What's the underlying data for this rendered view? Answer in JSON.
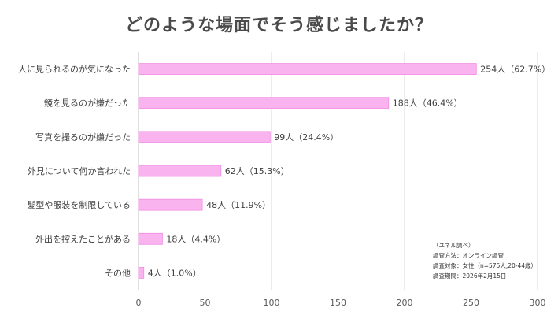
{
  "chart_data": {
    "type": "bar",
    "orientation": "horizontal",
    "title": "どのような場面でそう感じましたか？",
    "categories": [
      "人に見られるのが気になった",
      "鏡を見るのが嫌だった",
      "写真を撮るのが嫌だった",
      "外見について何か言われた",
      "髪型や服装を制限している",
      "外出を控えたことがある",
      "その他"
    ],
    "values": [
      254,
      188,
      99,
      62,
      48,
      18,
      4
    ],
    "percents": [
      "62.7%",
      "46.4%",
      "24.4%",
      "15.3%",
      "11.9%",
      "4.4%",
      "1.0%"
    ],
    "data_labels": [
      "254人（62.7%）",
      "188人（46.4%）",
      "99人（24.4%）",
      "62人（15.3%）",
      "48人（11.9%）",
      "18人（4.4%）",
      "4人（1.0%）"
    ],
    "xlim": [
      0,
      300
    ],
    "xticks": [
      0,
      50,
      100,
      150,
      200,
      250,
      300
    ],
    "xtick_labels": [
      "0",
      "50",
      "100",
      "150",
      "200",
      "250",
      "300"
    ],
    "grid": true,
    "bar_color": "#f9b3ee",
    "bar_edge_color": "#f28de3",
    "grid_color": "#d9d9d9"
  },
  "notes": {
    "line1": "（ユネル調べ）",
    "line2": "調査方法：オンライン調査",
    "line3": "調査対象：女性（n=575人,20-44歳）",
    "line4": "調査期間：2026年2月15日"
  }
}
